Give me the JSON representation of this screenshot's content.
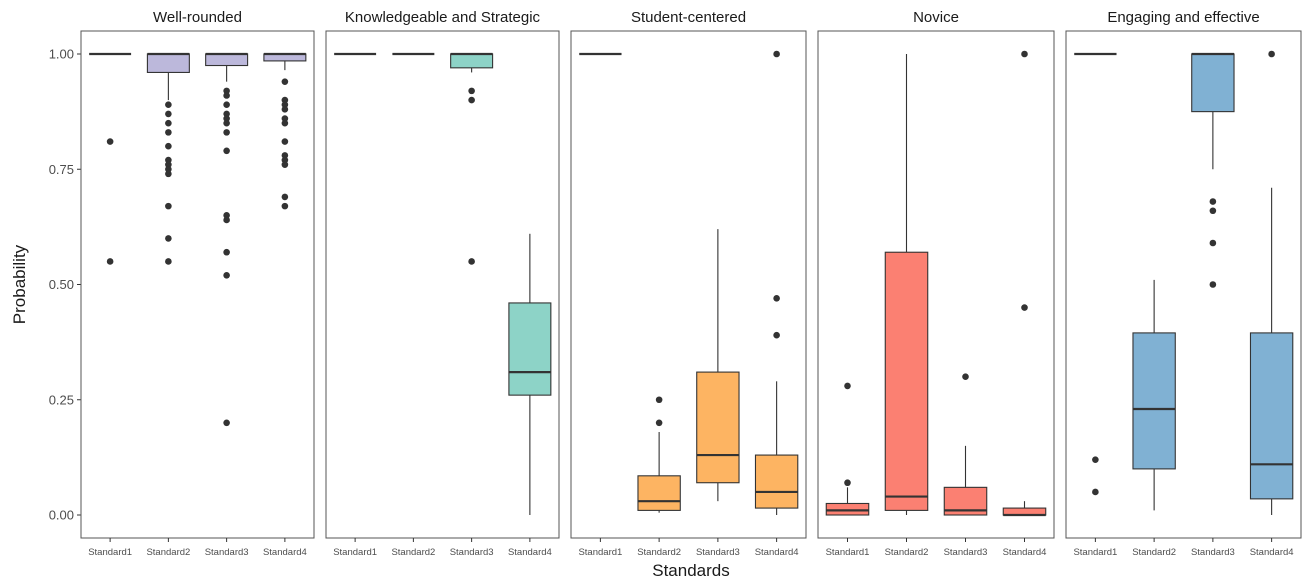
{
  "chart_data": {
    "type": "boxplot",
    "xlabel": "Standards",
    "ylabel": "Probability",
    "ylim": [
      0,
      1
    ],
    "y_ticks": [
      "0.00",
      "0.25",
      "0.50",
      "0.75",
      "1.00"
    ],
    "y_tick_values": [
      0,
      0.25,
      0.5,
      0.75,
      1.0
    ],
    "categories": [
      "Standard1",
      "Standard2",
      "Standard3",
      "Standard4"
    ],
    "grid": false,
    "legend": "none",
    "panels": [
      {
        "title": "Well-rounded",
        "color": "#bcb8db",
        "boxes": [
          {
            "q1": 1.0,
            "median": 1.0,
            "q3": 1.0,
            "whisker_low": 1.0,
            "whisker_high": 1.0,
            "outliers": [
              0.81,
              0.55
            ]
          },
          {
            "q1": 0.96,
            "median": 1.0,
            "q3": 1.0,
            "whisker_low": 0.9,
            "whisker_high": 1.0,
            "outliers": [
              0.89,
              0.87,
              0.85,
              0.83,
              0.8,
              0.77,
              0.76,
              0.75,
              0.74,
              0.67,
              0.6,
              0.55
            ]
          },
          {
            "q1": 0.975,
            "median": 1.0,
            "q3": 1.0,
            "whisker_low": 0.94,
            "whisker_high": 1.0,
            "outliers": [
              0.92,
              0.91,
              0.89,
              0.87,
              0.86,
              0.85,
              0.83,
              0.79,
              0.65,
              0.64,
              0.57,
              0.52,
              0.2
            ]
          },
          {
            "q1": 0.985,
            "median": 1.0,
            "q3": 1.0,
            "whisker_low": 0.965,
            "whisker_high": 1.0,
            "outliers": [
              0.94,
              0.9,
              0.89,
              0.88,
              0.86,
              0.85,
              0.81,
              0.78,
              0.77,
              0.76,
              0.69,
              0.67
            ]
          }
        ]
      },
      {
        "title": "Knowledgeable and Strategic",
        "color": "#8dd3c7",
        "boxes": [
          {
            "q1": 1.0,
            "median": 1.0,
            "q3": 1.0,
            "whisker_low": 1.0,
            "whisker_high": 1.0,
            "outliers": []
          },
          {
            "q1": 1.0,
            "median": 1.0,
            "q3": 1.0,
            "whisker_low": 1.0,
            "whisker_high": 1.0,
            "outliers": []
          },
          {
            "q1": 0.97,
            "median": 1.0,
            "q3": 1.0,
            "whisker_low": 0.96,
            "whisker_high": 1.0,
            "outliers": [
              0.92,
              0.9,
              0.55
            ]
          },
          {
            "q1": 0.26,
            "median": 0.31,
            "q3": 0.46,
            "whisker_low": 0.0,
            "whisker_high": 0.61,
            "outliers": []
          }
        ]
      },
      {
        "title": "Student-centered",
        "color": "#fdb462",
        "boxes": [
          {
            "q1": 1.0,
            "median": 1.0,
            "q3": 1.0,
            "whisker_low": 1.0,
            "whisker_high": 1.0,
            "outliers": []
          },
          {
            "q1": 0.01,
            "median": 0.03,
            "q3": 0.085,
            "whisker_low": 0.005,
            "whisker_high": 0.18,
            "outliers": [
              0.25,
              0.2
            ]
          },
          {
            "q1": 0.07,
            "median": 0.13,
            "q3": 0.31,
            "whisker_low": 0.03,
            "whisker_high": 0.62,
            "outliers": []
          },
          {
            "q1": 0.015,
            "median": 0.05,
            "q3": 0.13,
            "whisker_low": 0.0,
            "whisker_high": 0.29,
            "outliers": [
              1.0,
              0.47,
              0.39
            ]
          }
        ]
      },
      {
        "title": "Novice",
        "color": "#fb8072",
        "boxes": [
          {
            "q1": 0.0,
            "median": 0.01,
            "q3": 0.025,
            "whisker_low": 0.0,
            "whisker_high": 0.06,
            "outliers": [
              0.28,
              0.07
            ]
          },
          {
            "q1": 0.01,
            "median": 0.04,
            "q3": 0.57,
            "whisker_low": 0.0,
            "whisker_high": 1.0,
            "outliers": []
          },
          {
            "q1": 0.0,
            "median": 0.01,
            "q3": 0.06,
            "whisker_low": 0.0,
            "whisker_high": 0.15,
            "outliers": [
              0.3
            ]
          },
          {
            "q1": 0.0,
            "median": 0.0,
            "q3": 0.015,
            "whisker_low": 0.0,
            "whisker_high": 0.03,
            "outliers": [
              1.0,
              0.45
            ]
          }
        ]
      },
      {
        "title": "Engaging and effective",
        "color": "#80b1d3",
        "boxes": [
          {
            "q1": 1.0,
            "median": 1.0,
            "q3": 1.0,
            "whisker_low": 1.0,
            "whisker_high": 1.0,
            "outliers": [
              0.12,
              0.05
            ]
          },
          {
            "q1": 0.1,
            "median": 0.23,
            "q3": 0.395,
            "whisker_low": 0.01,
            "whisker_high": 0.51,
            "outliers": []
          },
          {
            "q1": 0.875,
            "median": 1.0,
            "q3": 1.0,
            "whisker_low": 0.75,
            "whisker_high": 1.0,
            "outliers": [
              0.68,
              0.66,
              0.59,
              0.5
            ]
          },
          {
            "q1": 0.035,
            "median": 0.11,
            "q3": 0.395,
            "whisker_low": 0.0,
            "whisker_high": 0.71,
            "outliers": [
              1.0
            ]
          }
        ]
      }
    ]
  }
}
